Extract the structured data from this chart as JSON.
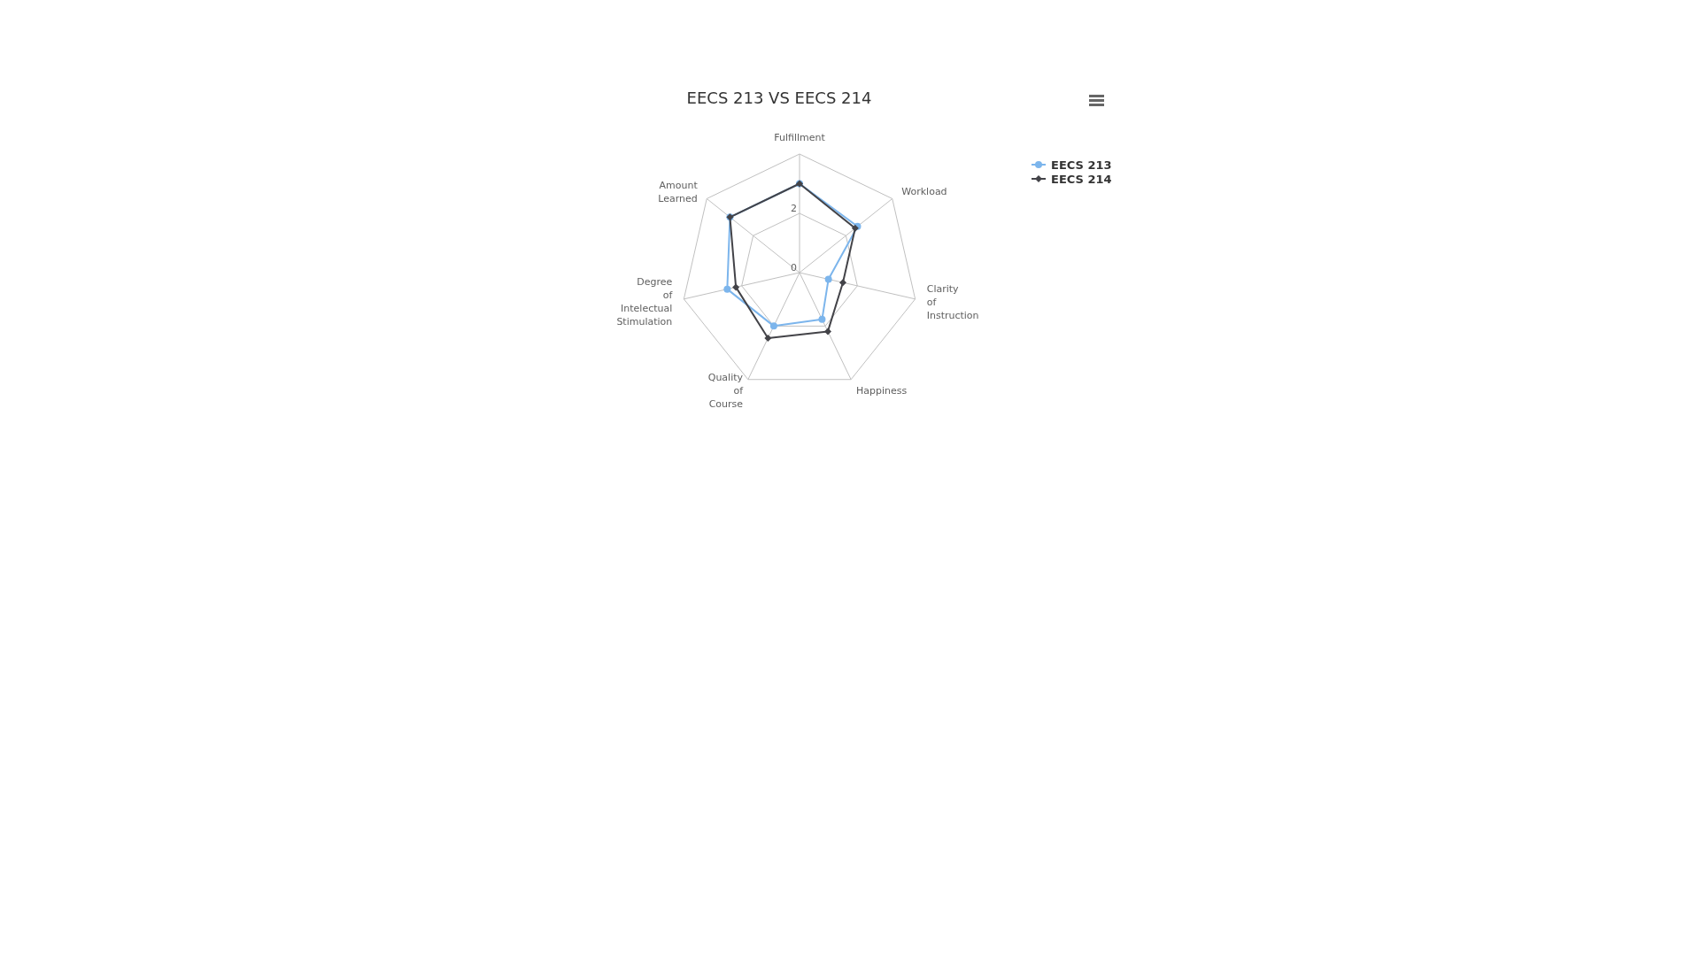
{
  "chart_data": {
    "type": "radar",
    "title": "EECS 213 VS EECS 214",
    "categories": [
      "Fulfillment",
      "Workload",
      "Clarity of Instruction",
      "Happiness",
      "Quality of Course",
      "Degree of Intelectual Stimulation",
      "Amount Learned"
    ],
    "series": [
      {
        "name": "EECS 213",
        "color": "#7cb5ec",
        "marker": "circle",
        "values": [
          3.0,
          2.5,
          1.0,
          1.75,
          2.0,
          2.5,
          3.0
        ]
      },
      {
        "name": "EECS 214",
        "color": "#434348",
        "marker": "diamond",
        "values": [
          3.0,
          2.4,
          1.5,
          2.2,
          2.45,
          2.2,
          3.0
        ]
      }
    ],
    "ylim": [
      0,
      4
    ],
    "yticks": [
      0,
      2
    ],
    "grid": true,
    "legend": "top right"
  }
}
